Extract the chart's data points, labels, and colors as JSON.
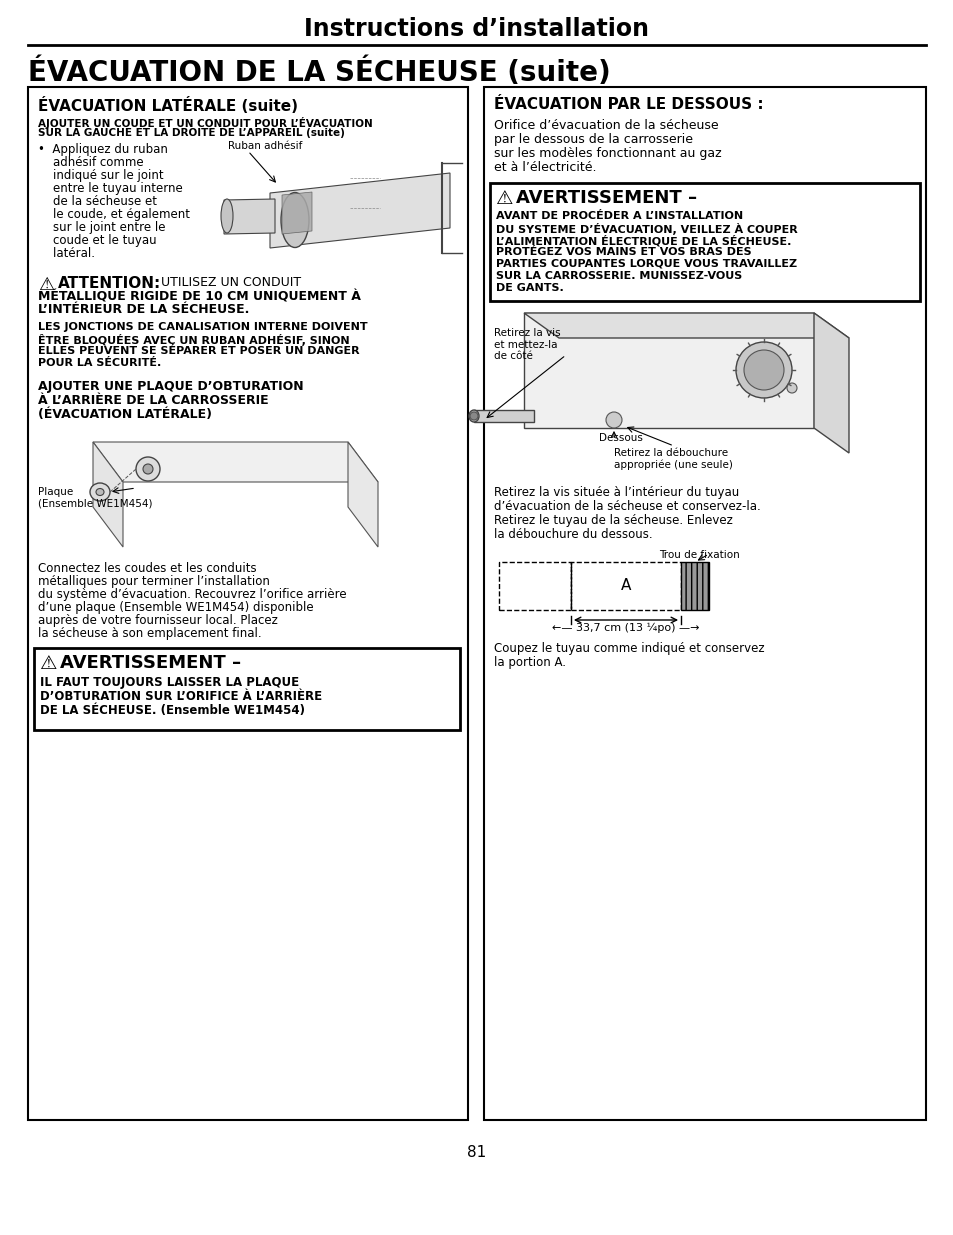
{
  "title": "Instructions d’installation",
  "section_title": "ÉVACUATION DE LA SÉCHEUSE (suite)",
  "left_box_title": "ÉVACUATION LATÉRALE (suite)",
  "right_box_title": "ÉVACUATION PAR LE DESSOUS :",
  "left_sub1_lines": [
    "AJOUTER UN COUDE ET UN CONDUIT POUR L’ÉVACUATION",
    "SUR LA GAUCHE ET LA DROITE DE L’APPAREIL (suite)"
  ],
  "bullet_lines": [
    "•  Appliquez du ruban",
    "    adhésif comme",
    "    indiqué sur le joint",
    "    entre le tuyau interne",
    "    de la sécheuse et",
    "    le coude, et également",
    "    sur le joint entre le",
    "    coude et le tuyau",
    "    latéral."
  ],
  "ruban_label": "Ruban adhésif",
  "attn_head": "ATTENTION:",
  "attn_inline": " UTILISEZ UN CONDUIT",
  "attn_lines": [
    "MÉTALLIQUE RIGIDE DE 10 CM UNIQUEMENT À",
    "L’INTÉRIEUR DE LA SÉCHEUSE."
  ],
  "attn_para2_lines": [
    "LES JONCTIONS DE CANALISATION INTERNE DOIVENT",
    "ÊTRE BLOQUÉES AVEC UN RUBAN ADHÉSIF, SINON",
    "ELLES PEUVENT SE SÉPARER ET POSER UN DANGER",
    "POUR LA SÉCURITÉ."
  ],
  "sub2_lines": [
    "AJOUTER UNE PLAQUE D’OBTURATION",
    "À L’ARRIÈRE DE LA CARROSSERIE",
    "(ÉVACUATION LATÉRALE)"
  ],
  "plaque_label": "Plaque\n(Ensemble WE1M454)",
  "para_bot_lines": [
    "Connectez les coudes et les conduits",
    "métalliques pour terminer l’installation",
    "du système d’évacuation. Recouvrez l’orifice arrière",
    "d’une plaque (Ensemble WE1M454) disponible",
    "auprès de votre fournisseur local. Placez",
    "la sécheuse à son emplacement final."
  ],
  "left_warn_head": "AVERTISSEMENT –",
  "left_warn_lines": [
    "IL FAUT TOUJOURS LAISSER LA PLAQUE",
    "D’OBTURATION SUR L’ORIFICE À L’ARRIÈRE",
    "DE LA SÉCHEUSE. (Ensemble WE1M454)"
  ],
  "right_intro_lines": [
    "Orifice d’évacuation de la sécheuse",
    "par le dessous de la carrosserie",
    "sur les modèles fonctionnant au gaz",
    "et à l’électricité."
  ],
  "right_warn_head": "AVERTISSEMENT –",
  "right_warn_lines": [
    "AVANT DE PROCÉDER A L’INSTALLATION",
    "DU SYSTEME D’ÉVACUATION, VEILLEZ À COUPER",
    "L’ALIMENTATION ÉLECTRIQUE DE LA SÉCHEUSE.",
    "PROTÉGEZ VOS MAINS ET VOS BRAS DES",
    "PARTIES COUPANTES LORQUE VOUS TRAVAILLEZ",
    "SUR LA CARROSSERIE. MUNISSEZ-VOUS",
    "DE GANTS."
  ],
  "right_label_vis": "Retirez la vis\net mettez-la\nde côté",
  "right_label_dessous": "Dessous",
  "right_label_debouchure": "Retirez la débouchure\nappropriée (une seule)",
  "right_para_mid_lines": [
    "Retirez la vis située à l’intérieur du tuyau",
    "d’évacuation de la sécheuse et conservez-la.",
    "Retirez le tuyau de la sécheuse. Enlevez",
    "la débouchure du dessous."
  ],
  "trou_label": "Trou de fixation",
  "A_label": "A",
  "dim_label": "←— 33,7 cm (13 ¼po) —→",
  "right_para_bot_lines": [
    "Coupez le tuyau comme indiqué et conservez",
    "la portion A."
  ],
  "page_num": "81"
}
